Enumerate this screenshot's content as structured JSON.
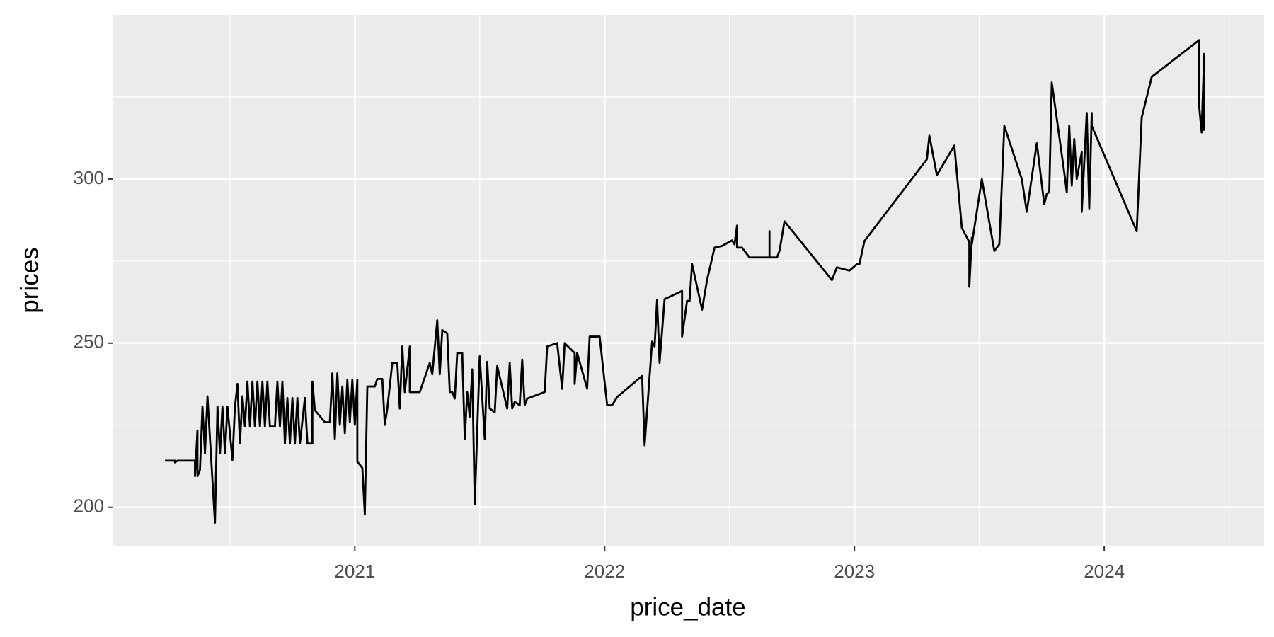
{
  "chart_data": {
    "type": "line",
    "x_label": "price_date",
    "y_label": "prices",
    "color": "#000000",
    "x": [
      2020.24,
      2020.28,
      2020.28,
      2020.29,
      2020.36,
      2020.36,
      2020.37,
      2020.37,
      2020.38,
      2020.39,
      2020.4,
      2020.41,
      2020.44,
      2020.45,
      2020.46,
      2020.47,
      2020.48,
      2020.49,
      2020.51,
      2020.52,
      2020.53,
      2020.54,
      2020.55,
      2020.56,
      2020.57,
      2020.58,
      2020.59,
      2020.6,
      2020.61,
      2020.62,
      2020.63,
      2020.64,
      2020.65,
      2020.66,
      2020.68,
      2020.69,
      2020.7,
      2020.71,
      2020.72,
      2020.73,
      2020.74,
      2020.75,
      2020.76,
      2020.77,
      2020.78,
      2020.8,
      2020.81,
      2020.83,
      2020.83,
      2020.84,
      2020.88,
      2020.9,
      2020.91,
      2020.92,
      2020.93,
      2020.94,
      2020.95,
      2020.96,
      2020.97,
      2020.98,
      2020.99,
      2021.0,
      2021.01,
      2021.01,
      2021.03,
      2021.04,
      2021.05,
      2021.08,
      2021.09,
      2021.11,
      2021.12,
      2021.13,
      2021.15,
      2021.17,
      2021.18,
      2021.19,
      2021.2,
      2021.22,
      2021.22,
      2021.26,
      2021.3,
      2021.31,
      2021.33,
      2021.34,
      2021.35,
      2021.37,
      2021.38,
      2021.39,
      2021.4,
      2021.41,
      2021.43,
      2021.44,
      2021.45,
      2021.46,
      2021.47,
      2021.48,
      2021.5,
      2021.52,
      2021.53,
      2021.54,
      2021.56,
      2021.57,
      2021.61,
      2021.62,
      2021.63,
      2021.64,
      2021.66,
      2021.67,
      2021.68,
      2021.69,
      2021.76,
      2021.77,
      2021.81,
      2021.83,
      2021.84,
      2021.88,
      2021.88,
      2021.89,
      2021.93,
      2021.94,
      2021.98,
      2022.01,
      2022.03,
      2022.05,
      2022.15,
      2022.16,
      2022.19,
      2022.2,
      2022.21,
      2022.22,
      2022.24,
      2022.31,
      2022.31,
      2022.33,
      2022.34,
      2022.35,
      2022.39,
      2022.41,
      2022.44,
      2022.47,
      2022.51,
      2022.52,
      2022.53,
      2022.53,
      2022.55,
      2022.58,
      2022.66,
      2022.66,
      2022.66,
      2022.69,
      2022.7,
      2022.72,
      2022.91,
      2022.93,
      2022.98,
      2023.01,
      2023.02,
      2023.04,
      2023.29,
      2023.3,
      2023.33,
      2023.4,
      2023.43,
      2023.46,
      2023.46,
      2023.47,
      2023.47,
      2023.51,
      2023.56,
      2023.58,
      2023.6,
      2023.67,
      2023.69,
      2023.73,
      2023.76,
      2023.77,
      2023.78,
      2023.79,
      2023.84,
      2023.85,
      2023.86,
      2023.87,
      2023.88,
      2023.89,
      2023.91,
      2023.91,
      2023.93,
      2023.94,
      2023.95,
      2023.95,
      2024.13,
      2024.15,
      2024.19,
      2024.38,
      2024.38,
      2024.39,
      2024.4,
      2024.4,
      2024.4
    ],
    "values": [
      214.2,
      214.2,
      213.7,
      214.2,
      214.2,
      209.5,
      223.4,
      209.5,
      211.4,
      230.6,
      216.4,
      233.8,
      195.3,
      230.6,
      216.4,
      230.6,
      216.4,
      230.6,
      214.4,
      230.6,
      237.6,
      219.4,
      233.8,
      224.6,
      238.3,
      224.6,
      238.3,
      224.6,
      238.3,
      224.6,
      238.3,
      224.6,
      238.3,
      224.6,
      224.6,
      238.3,
      224.6,
      238.3,
      219.4,
      233.3,
      219.4,
      233.3,
      219.4,
      233.3,
      219.4,
      233.3,
      219.4,
      219.4,
      238.3,
      229.6,
      225.9,
      225.9,
      240.8,
      220.9,
      240.8,
      225.1,
      236.8,
      222.6,
      238.8,
      225.9,
      238.8,
      225.1,
      238.8,
      213.9,
      212.0,
      197.8,
      236.8,
      236.8,
      239.1,
      239.1,
      225.1,
      230.1,
      244.0,
      244.0,
      230.1,
      249.0,
      235.1,
      249.0,
      235.1,
      235.1,
      244.0,
      240.5,
      257.0,
      240.5,
      254.0,
      253.0,
      235.1,
      235.1,
      233.1,
      247.0,
      247.0,
      220.9,
      235.1,
      227.6,
      242.0,
      201.0,
      246.0,
      220.9,
      244.3,
      230.1,
      228.9,
      243.0,
      230.1,
      244.0,
      230.1,
      232.1,
      231.1,
      245.0,
      231.1,
      233.1,
      235.1,
      249.0,
      250.0,
      236.1,
      250.0,
      247.0,
      237.6,
      247.0,
      236.1,
      252.0,
      252.0,
      231.1,
      231.1,
      233.6,
      240.0,
      218.9,
      250.5,
      249.0,
      263.2,
      244.0,
      263.4,
      265.9,
      252.0,
      262.9,
      262.9,
      274.1,
      260.2,
      269.2,
      279.1,
      279.6,
      281.3,
      280.1,
      285.8,
      279.1,
      279.1,
      276.1,
      276.1,
      284.1,
      276.1,
      276.1,
      278.1,
      287.1,
      269.2,
      273.1,
      272.1,
      274.1,
      274.1,
      281.1,
      306.0,
      313.2,
      301.2,
      310.2,
      285.1,
      280.8,
      267.2,
      282.1,
      280.1,
      300.0,
      278.1,
      280.1,
      316.2,
      300.0,
      290.0,
      310.9,
      292.3,
      295.5,
      296.0,
      329.4,
      302.0,
      296.0,
      316.2,
      298.0,
      312.2,
      300.0,
      308.2,
      290.0,
      320.1,
      291.0,
      320.1,
      316.2,
      284.1,
      318.7,
      331.1,
      342.3,
      322.1,
      314.2,
      338.1,
      318.2,
      314.7
    ],
    "xlim": [
      2020.03,
      2024.64
    ],
    "ylim": [
      188.3,
      350
    ],
    "xticks": [
      2021,
      2022,
      2023,
      2024
    ],
    "yticks": [
      200,
      250,
      300
    ],
    "x_minor_ticks": [
      2020.5,
      2021.5,
      2022.5,
      2023.5,
      2024.5
    ],
    "y_minor_ticks": [
      225,
      275,
      325
    ],
    "grid": true
  }
}
